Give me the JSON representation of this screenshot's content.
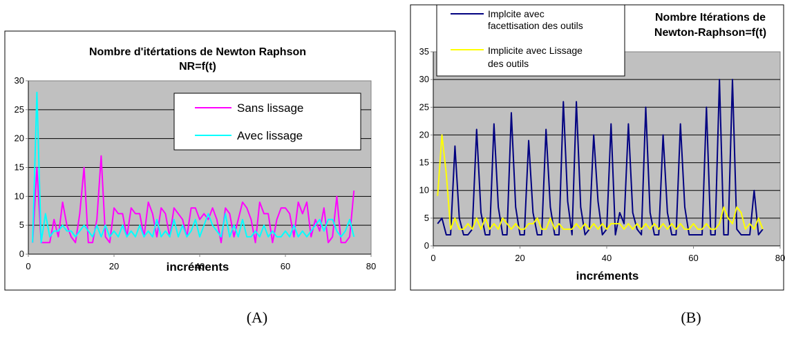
{
  "chart_data": [
    {
      "type": "line",
      "title_lines": [
        "Nombre d'itértations de Newton Raphson",
        "NR=f(t)"
      ],
      "xlabel": "incréments",
      "ylabel": "",
      "xlim": [
        0,
        80
      ],
      "ylim": [
        0,
        30
      ],
      "xticks": [
        "0",
        "20",
        "40",
        "60",
        "80"
      ],
      "yticks": [
        "0",
        "5",
        "10",
        "15",
        "20",
        "25",
        "30"
      ],
      "grid": true,
      "legend_position": "top-right",
      "series": [
        {
          "name": "Sans lissage",
          "color": "#ff00ff",
          "values": [
            2,
            15,
            2,
            2,
            2,
            6,
            3,
            9,
            5,
            3,
            2,
            7,
            15,
            2,
            2,
            6,
            17,
            3,
            2,
            8,
            7,
            7,
            3,
            8,
            7,
            7,
            3,
            9,
            7,
            3,
            8,
            7,
            3,
            8,
            7,
            6,
            3,
            8,
            8,
            6,
            7,
            6,
            8,
            6,
            2,
            8,
            7,
            3,
            6,
            9,
            8,
            6,
            2,
            9,
            7,
            7,
            2,
            6,
            8,
            8,
            7,
            3,
            9,
            7,
            9,
            3,
            6,
            4,
            8,
            2,
            3,
            10,
            2,
            2,
            3,
            11
          ]
        },
        {
          "name": "Avec lissage",
          "color": "#00ffff",
          "values": [
            2,
            28,
            2,
            7,
            3,
            4,
            4,
            5,
            4,
            4,
            3,
            4,
            5,
            4,
            3,
            5,
            3,
            5,
            3,
            4,
            3,
            5,
            3,
            4,
            3,
            5,
            3,
            4,
            3,
            6,
            3,
            4,
            3,
            6,
            3,
            5,
            3,
            4,
            6,
            3,
            5,
            7,
            5,
            4,
            3,
            7,
            3,
            5,
            3,
            6,
            3,
            3,
            4,
            3,
            5,
            3,
            4,
            3,
            3,
            4,
            3,
            5,
            3,
            4,
            3,
            4,
            5,
            6,
            4,
            6,
            6,
            4,
            3,
            4,
            6,
            3
          ]
        }
      ]
    },
    {
      "type": "line",
      "title_lines": [
        "Nombre Itérations de",
        "Newton-Raphson=f(t)"
      ],
      "xlabel": "incréments",
      "ylabel": "",
      "xlim": [
        0,
        80
      ],
      "ylim": [
        0,
        35
      ],
      "xticks": [
        "0",
        "20",
        "40",
        "60",
        "80"
      ],
      "yticks": [
        "0",
        "5",
        "10",
        "15",
        "20",
        "25",
        "30",
        "35"
      ],
      "grid": true,
      "legend_position": "top-left",
      "series": [
        {
          "name_lines": [
            "Implcite avec",
            "facettisation des outils"
          ],
          "color": "#000080",
          "values": [
            4,
            5,
            2,
            2,
            18,
            5,
            2,
            2,
            3,
            21,
            6,
            2,
            2,
            22,
            7,
            2,
            2,
            24,
            7,
            2,
            2,
            19,
            6,
            2,
            2,
            21,
            7,
            2,
            2,
            26,
            8,
            2,
            26,
            7,
            2,
            3,
            20,
            8,
            2,
            3,
            22,
            2,
            6,
            4,
            22,
            6,
            3,
            2,
            25,
            6,
            2,
            2,
            20,
            6,
            2,
            2,
            22,
            7,
            2,
            2,
            2,
            2,
            25,
            2,
            2,
            30,
            2,
            2,
            30,
            3,
            2,
            2,
            2,
            10,
            2,
            3
          ]
        },
        {
          "name_lines": [
            "Implicite avec Lissage",
            "des outils"
          ],
          "color": "#ffff00",
          "values": [
            9,
            20,
            13,
            3,
            5,
            3,
            3,
            4,
            3,
            5,
            3,
            5,
            3,
            4,
            3,
            5,
            4,
            3,
            4,
            3,
            3,
            4,
            4,
            5,
            3,
            3,
            5,
            3,
            4,
            3,
            3,
            3,
            4,
            3,
            4,
            3,
            4,
            3,
            4,
            3,
            4,
            4,
            4,
            3,
            4,
            3,
            4,
            3,
            4,
            3,
            4,
            3,
            4,
            3,
            4,
            3,
            4,
            3,
            3,
            4,
            3,
            3,
            4,
            3,
            3,
            4,
            7,
            5,
            4,
            7,
            6,
            3,
            4,
            3,
            5,
            3
          ]
        }
      ]
    }
  ],
  "captions": [
    "(A)",
    "(B)"
  ]
}
